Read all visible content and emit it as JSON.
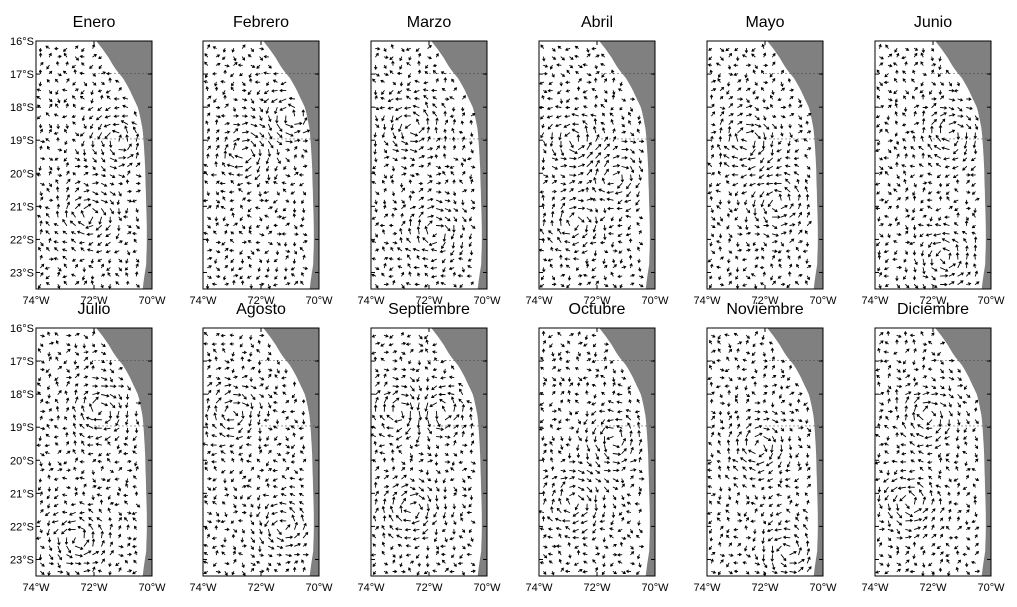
{
  "figure": {
    "panels": [
      {
        "title": "Enero"
      },
      {
        "title": "Febrero"
      },
      {
        "title": "Marzo"
      },
      {
        "title": "Abril"
      },
      {
        "title": "Mayo"
      },
      {
        "title": "Junio"
      },
      {
        "title": "Julio"
      },
      {
        "title": "Agosto"
      },
      {
        "title": "Septiembre"
      },
      {
        "title": "Octubre"
      },
      {
        "title": "Noviembre"
      },
      {
        "title": "Diciembre"
      }
    ],
    "lat_ticks": [
      {
        "lat": -16,
        "label": "16°S"
      },
      {
        "lat": -17,
        "label": "17°S"
      },
      {
        "lat": -18,
        "label": "18°S"
      },
      {
        "lat": -19,
        "label": "19°S"
      },
      {
        "lat": -20,
        "label": "20°S"
      },
      {
        "lat": -21,
        "label": "21°S"
      },
      {
        "lat": -22,
        "label": "22°S"
      },
      {
        "lat": -23,
        "label": "23°S"
      }
    ],
    "lon_ticks": [
      {
        "lon": -74,
        "label": "74°W"
      },
      {
        "lon": -72,
        "label": "72°W"
      },
      {
        "lon": -70,
        "label": "70°W"
      }
    ],
    "lon_range": [
      -74,
      -70
    ],
    "lat_range": [
      -23.5,
      -16
    ],
    "colors": {
      "land": "#808080",
      "ocean": "#ffffff",
      "vectors": "#000000"
    }
  }
}
